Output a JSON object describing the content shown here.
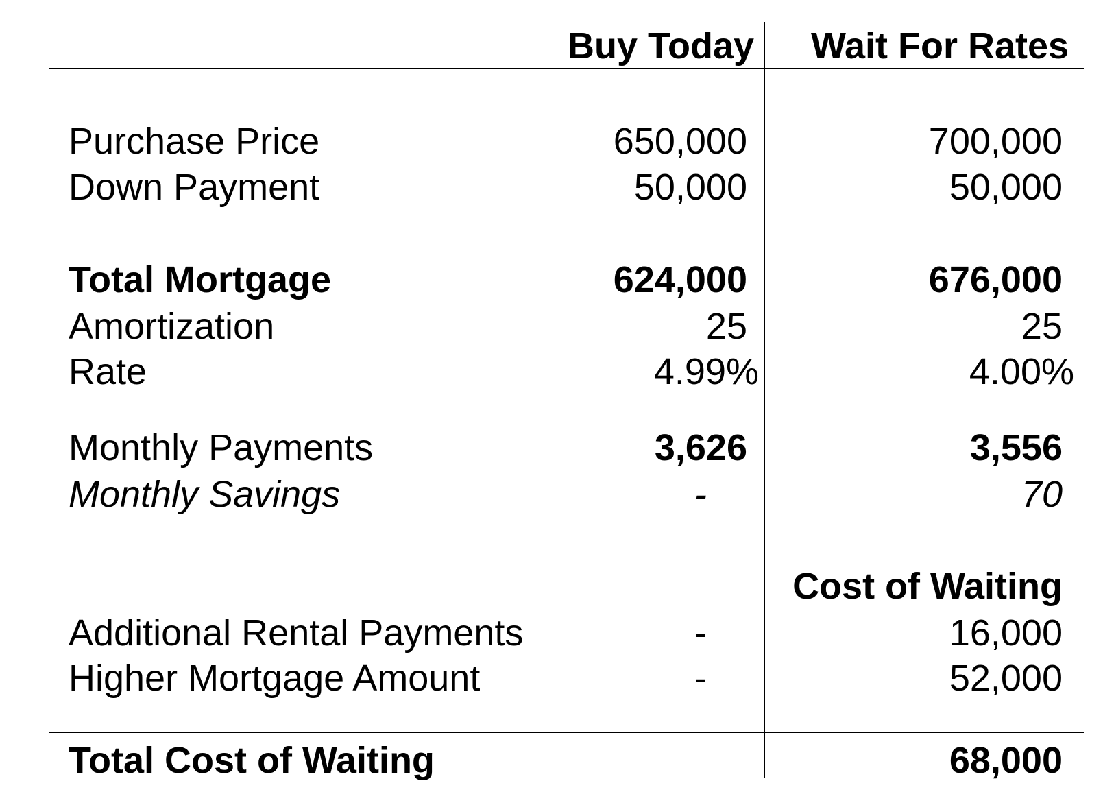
{
  "columns": {
    "buy_today": "Buy Today",
    "wait_for_rates": "Wait For Rates"
  },
  "rows": {
    "purchase_price": {
      "label": "Purchase Price",
      "buy": "650,000",
      "wait": "700,000"
    },
    "down_payment": {
      "label": "Down Payment",
      "buy": "50,000",
      "wait": "50,000"
    },
    "total_mortgage": {
      "label": "Total Mortgage",
      "buy": "624,000",
      "wait": "676,000"
    },
    "amortization": {
      "label": "Amortization",
      "buy": "25",
      "wait": "25"
    },
    "rate": {
      "label": "Rate",
      "buy": "4.99%",
      "wait": "4.00%"
    },
    "monthly_payments": {
      "label": "Monthly Payments",
      "buy": "3,626",
      "wait": "3,556"
    },
    "monthly_savings": {
      "label": "Monthly Savings",
      "buy": "-",
      "wait": "70"
    }
  },
  "cost_of_waiting": {
    "header": "Cost of Waiting",
    "additional_rental_payments": {
      "label": "Additional Rental Payments",
      "buy": "-",
      "wait": "16,000"
    },
    "higher_mortgage_amount": {
      "label": "Higher Mortgage Amount",
      "buy": "-",
      "wait": "52,000"
    },
    "total": {
      "label": "Total Cost of Waiting",
      "wait": "68,000"
    }
  }
}
